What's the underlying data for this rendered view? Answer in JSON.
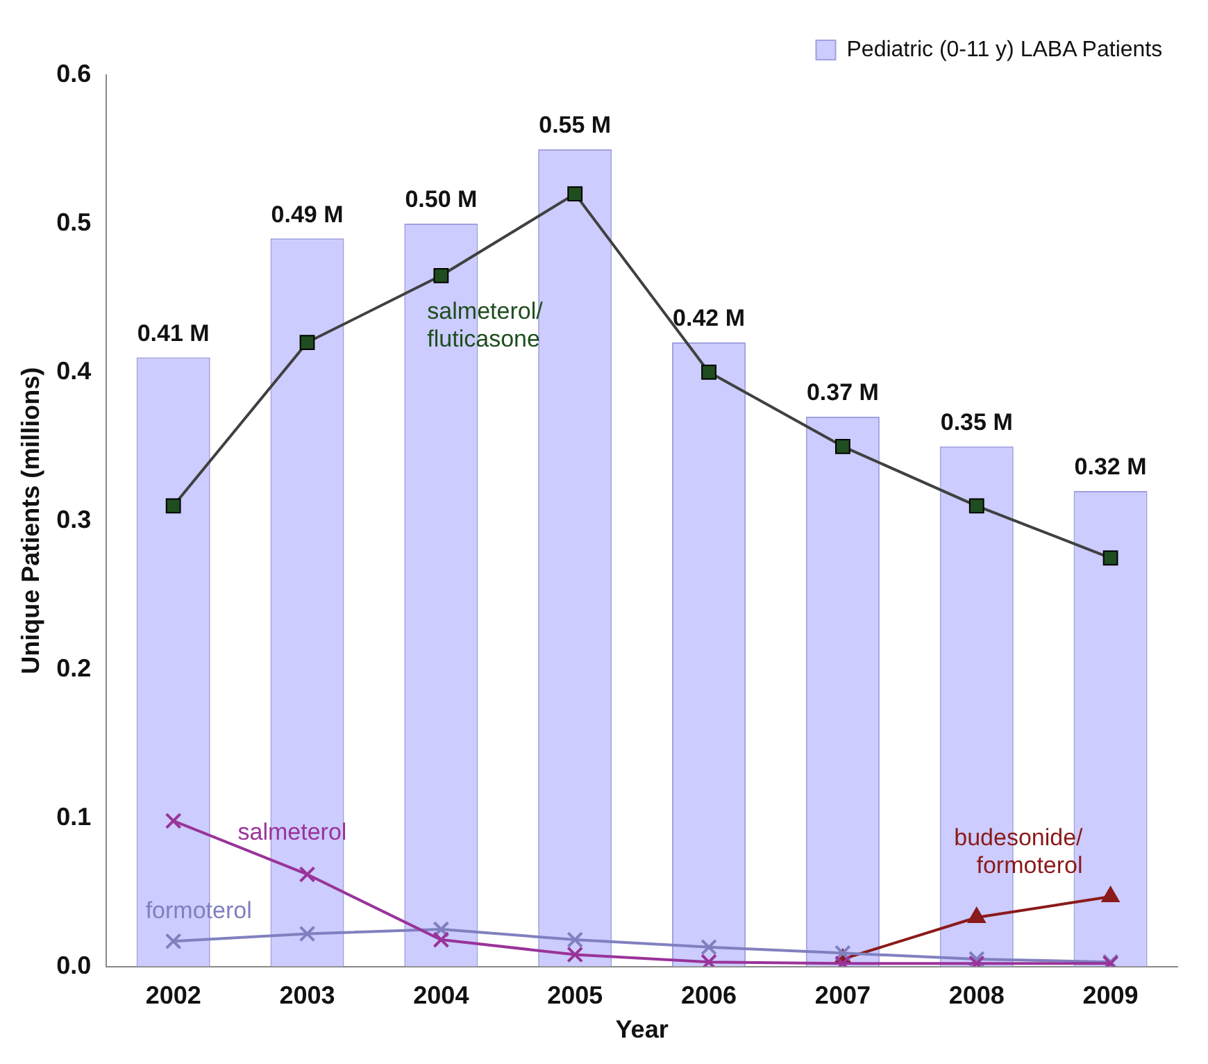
{
  "chart_data": {
    "type": "bar",
    "xlabel": "Year",
    "ylabel": "Unique Patients (millions)",
    "categories": [
      "2002",
      "2003",
      "2004",
      "2005",
      "2006",
      "2007",
      "2008",
      "2009"
    ],
    "ylim": [
      0,
      0.6
    ],
    "yticks": [
      {
        "value": 0,
        "label": "0.0"
      },
      0.1,
      0.2,
      0.3,
      0.4,
      0.5,
      0.6
    ],
    "grid": false,
    "legend": "top right",
    "series": [
      {
        "name": "Pediatric (0-11 y) LABA Patients",
        "color": "#ccccff",
        "values": [
          0.41,
          0.49,
          0.5,
          0.55,
          0.42,
          0.37,
          0.35,
          0.32
        ],
        "value_labels": [
          "0.41 M",
          "0.49 M",
          "0.50 M",
          "0.55 M",
          "0.42 M",
          "0.37 M",
          "0.35 M",
          "0.32 M"
        ]
      },
      {
        "name": "salmeterol/ fluticasone",
        "type": "line",
        "color": "#1f4d1f",
        "marker": "square",
        "values": [
          0.31,
          0.42,
          0.465,
          0.52,
          0.4,
          0.35,
          0.31,
          0.275
        ]
      },
      {
        "name": "salmeterol",
        "type": "line",
        "color": "#993399",
        "marker": "cross",
        "values": [
          0.098,
          0.062,
          0.018,
          0.008,
          0.003,
          0.002,
          0.002,
          0.002
        ]
      },
      {
        "name": "formoterol",
        "type": "line",
        "color": "#8080c0",
        "marker": "cross",
        "values": [
          0.017,
          0.022,
          0.025,
          0.018,
          0.013,
          0.009,
          0.005,
          0.003
        ]
      },
      {
        "name": "budesonide/ formoterol",
        "type": "line",
        "color": "#8b1a1a",
        "marker": "triangle",
        "values": [
          null,
          null,
          null,
          null,
          null,
          0.005,
          0.033,
          0.047
        ]
      }
    ]
  }
}
